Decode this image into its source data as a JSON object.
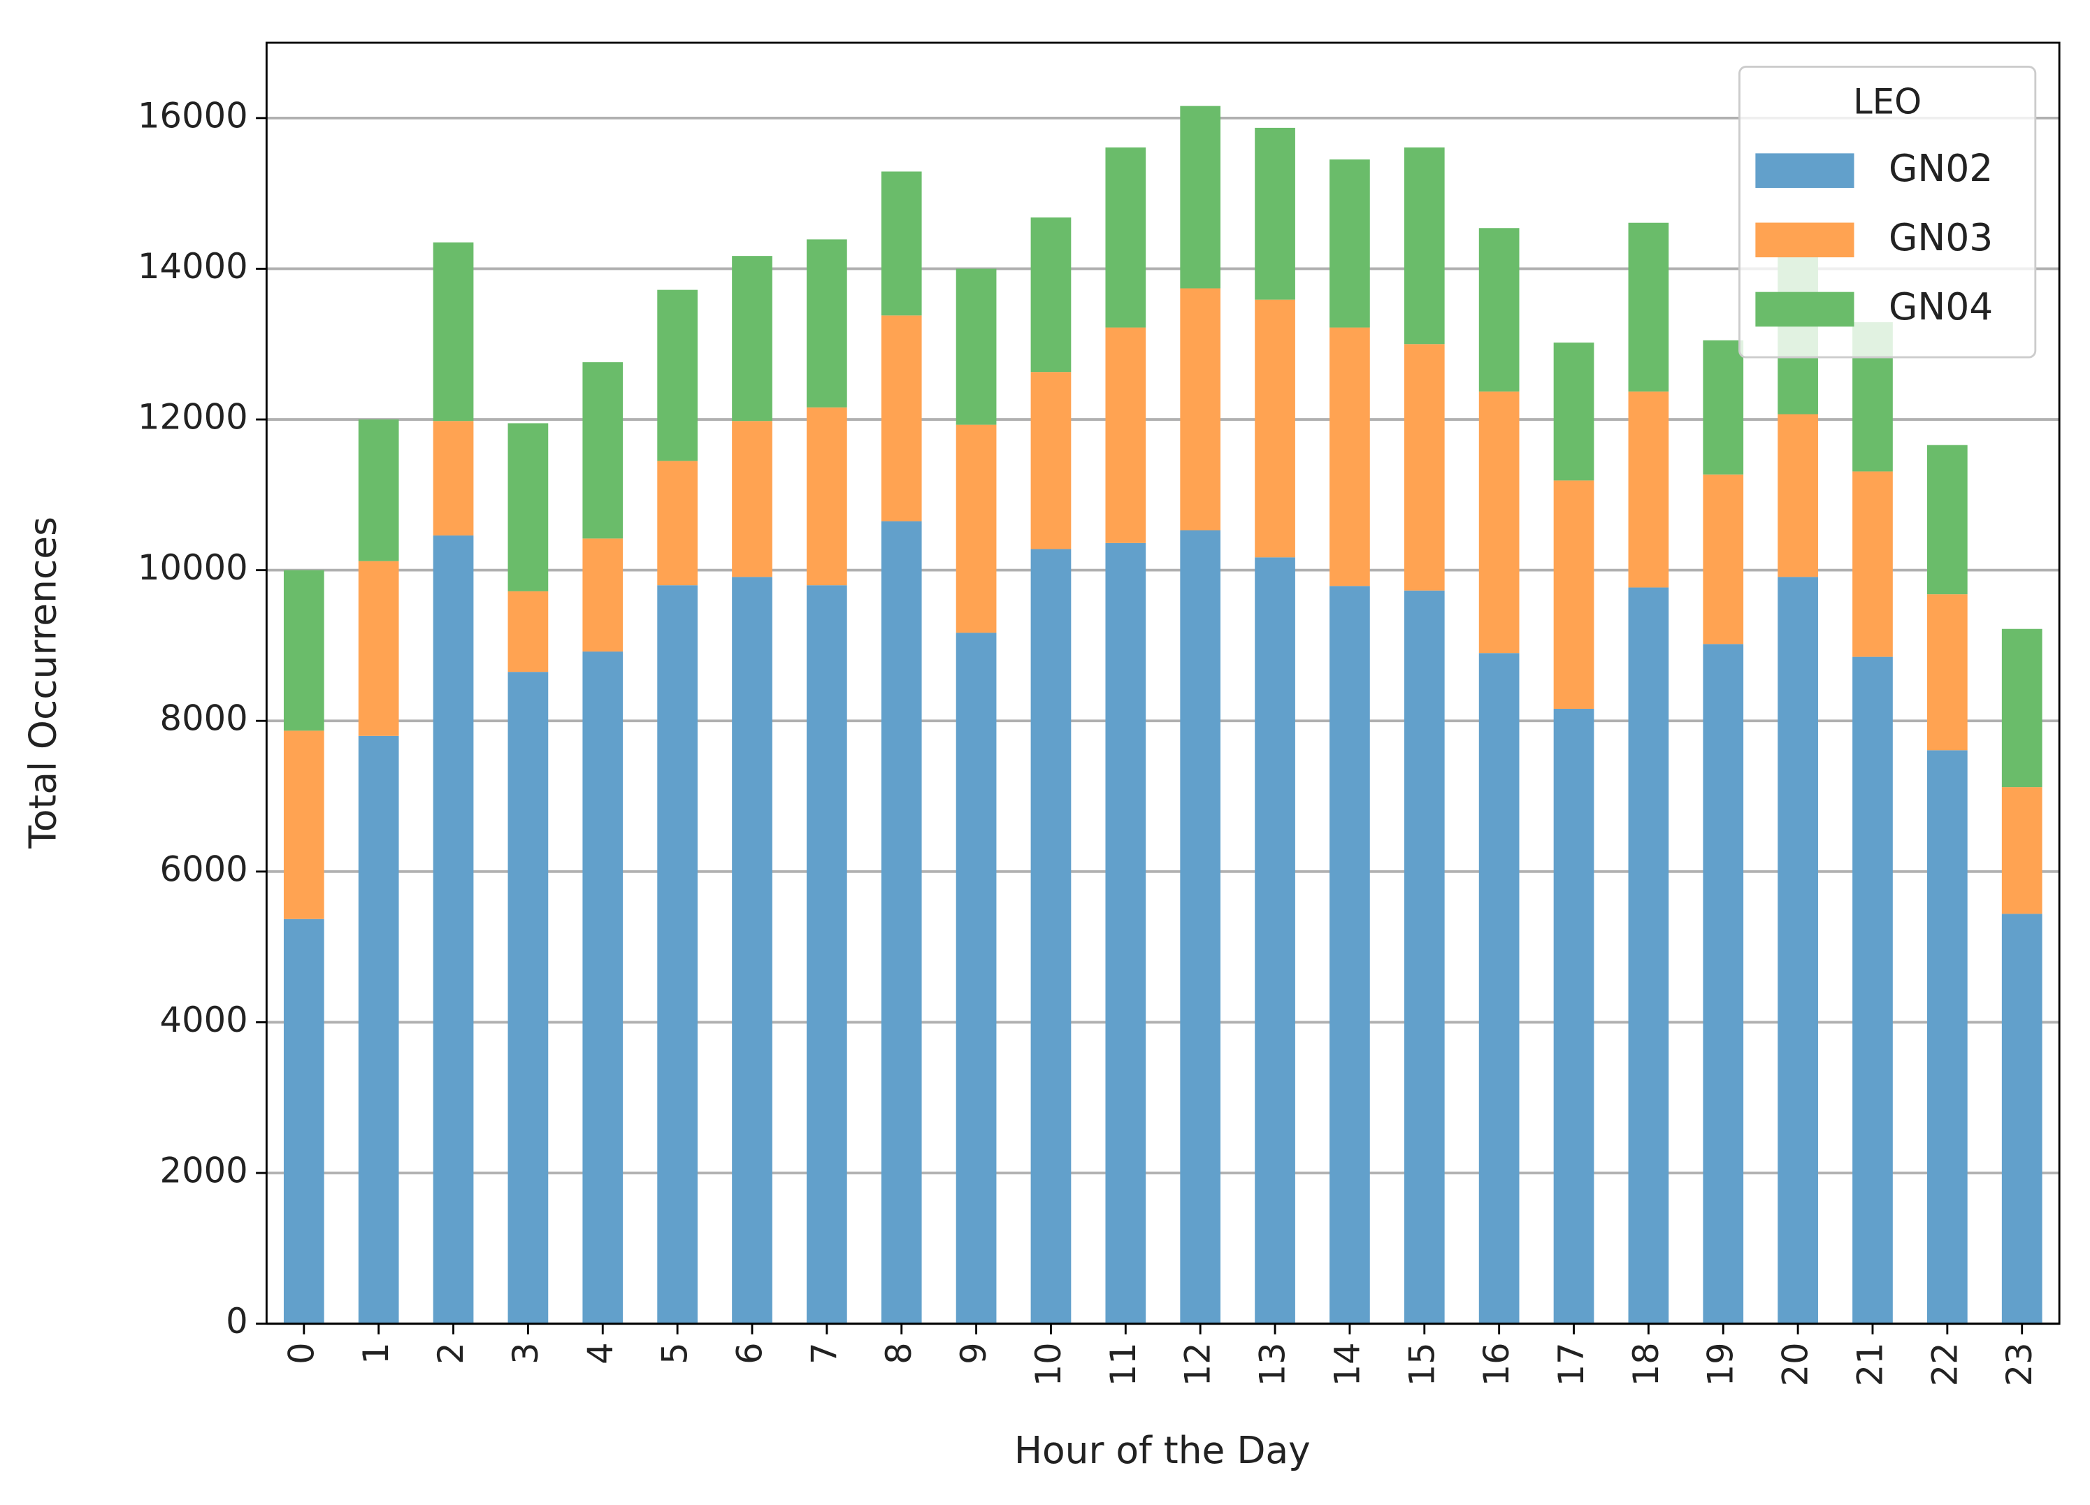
{
  "chart_data": {
    "type": "stacked_bar",
    "x_label": "Hour of the Day",
    "y_label": "Total Occurrences",
    "legend_title": "LEO",
    "legend_position": "upper right",
    "grid": true,
    "categories": [
      "0",
      "1",
      "2",
      "3",
      "4",
      "5",
      "6",
      "7",
      "8",
      "9",
      "10",
      "11",
      "12",
      "13",
      "14",
      "15",
      "16",
      "17",
      "18",
      "19",
      "20",
      "21",
      "22",
      "23"
    ],
    "series": [
      {
        "name": "GN02",
        "color": "#62a0cb",
        "values": [
          5370,
          7800,
          10460,
          8650,
          8920,
          9800,
          9910,
          9800,
          10650,
          9170,
          10280,
          10360,
          10530,
          10170,
          9790,
          9730,
          8900,
          8160,
          9770,
          9020,
          9910,
          8850,
          7610,
          5440
        ]
      },
      {
        "name": "GN03",
        "color": "#ffa352",
        "values": [
          2500,
          2320,
          1520,
          1070,
          1500,
          1650,
          2070,
          2360,
          2730,
          2760,
          2350,
          2860,
          3210,
          3420,
          3430,
          3270,
          3470,
          3030,
          2600,
          2250,
          2160,
          2460,
          2070,
          1680
        ]
      },
      {
        "name": "GN04",
        "color": "#6abc6a",
        "values": [
          2130,
          1880,
          2370,
          2230,
          2340,
          2270,
          2190,
          2230,
          1910,
          2070,
          2050,
          2390,
          2420,
          2280,
          2230,
          2610,
          2170,
          1830,
          2240,
          1780,
          2320,
          1980,
          1980,
          2100
        ]
      }
    ],
    "ylim": [
      0,
      17000
    ],
    "yticks": [
      0,
      2000,
      4000,
      6000,
      8000,
      10000,
      12000,
      14000,
      16000
    ]
  }
}
